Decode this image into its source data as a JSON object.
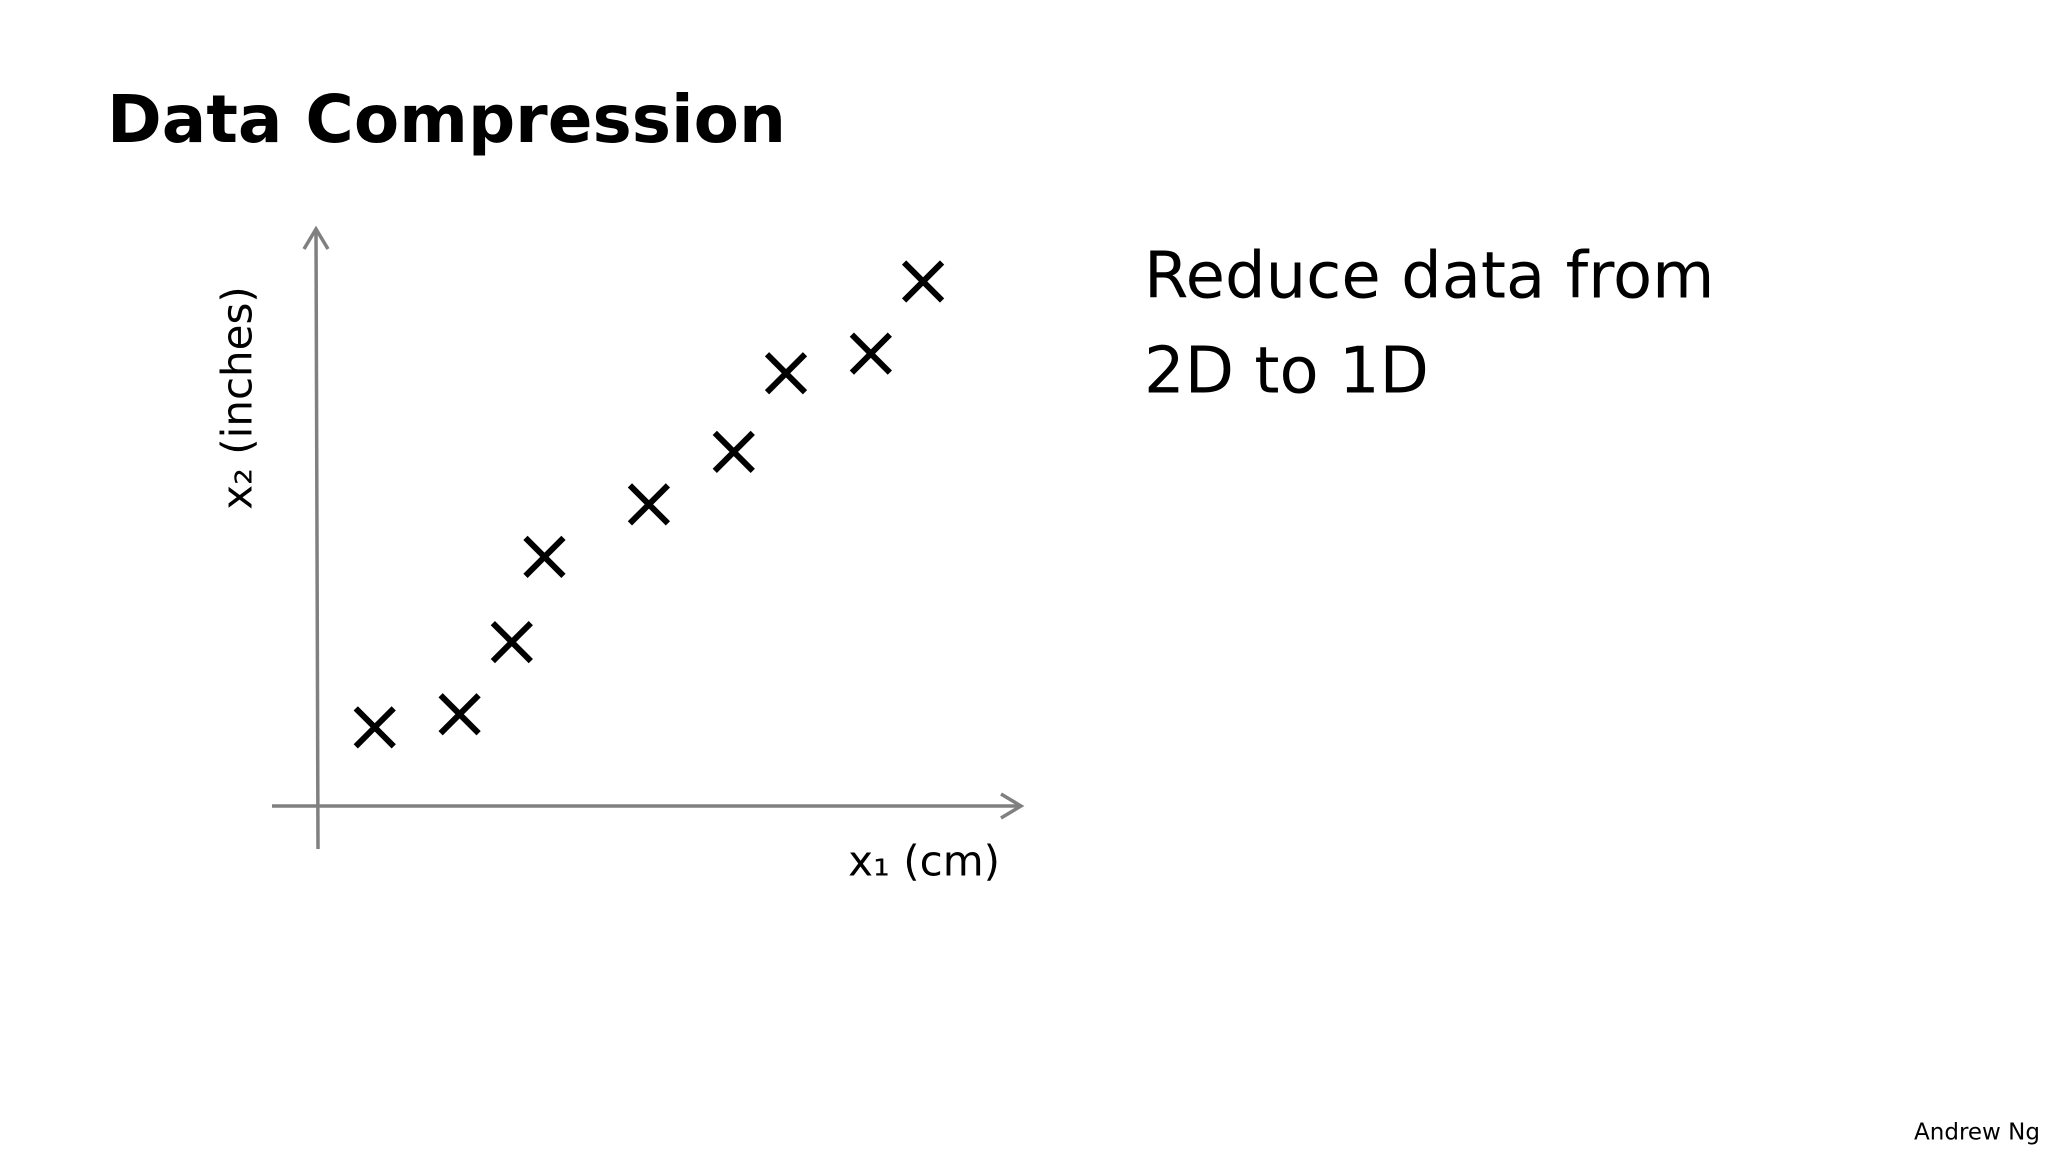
{
  "title": "Data Compression",
  "text": [
    "Reduce data from",
    "2D to 1D"
  ],
  "footer": "Andrew Ng",
  "chart_data": {
    "type": "scatter",
    "x_label": "x₁ (cm)",
    "y_label": "x₂ (inches)",
    "x": [
      0.9,
      2.2,
      3.0,
      3.5,
      5.1,
      6.4,
      7.2,
      8.5,
      9.3
    ],
    "values": [
      1.2,
      1.4,
      2.5,
      3.8,
      4.6,
      5.4,
      6.6,
      6.9,
      8.0
    ],
    "xlim": [
      0,
      10.8
    ],
    "ylim": [
      0,
      8.8
    ],
    "color": "#000000",
    "axis_color": "#808080"
  }
}
